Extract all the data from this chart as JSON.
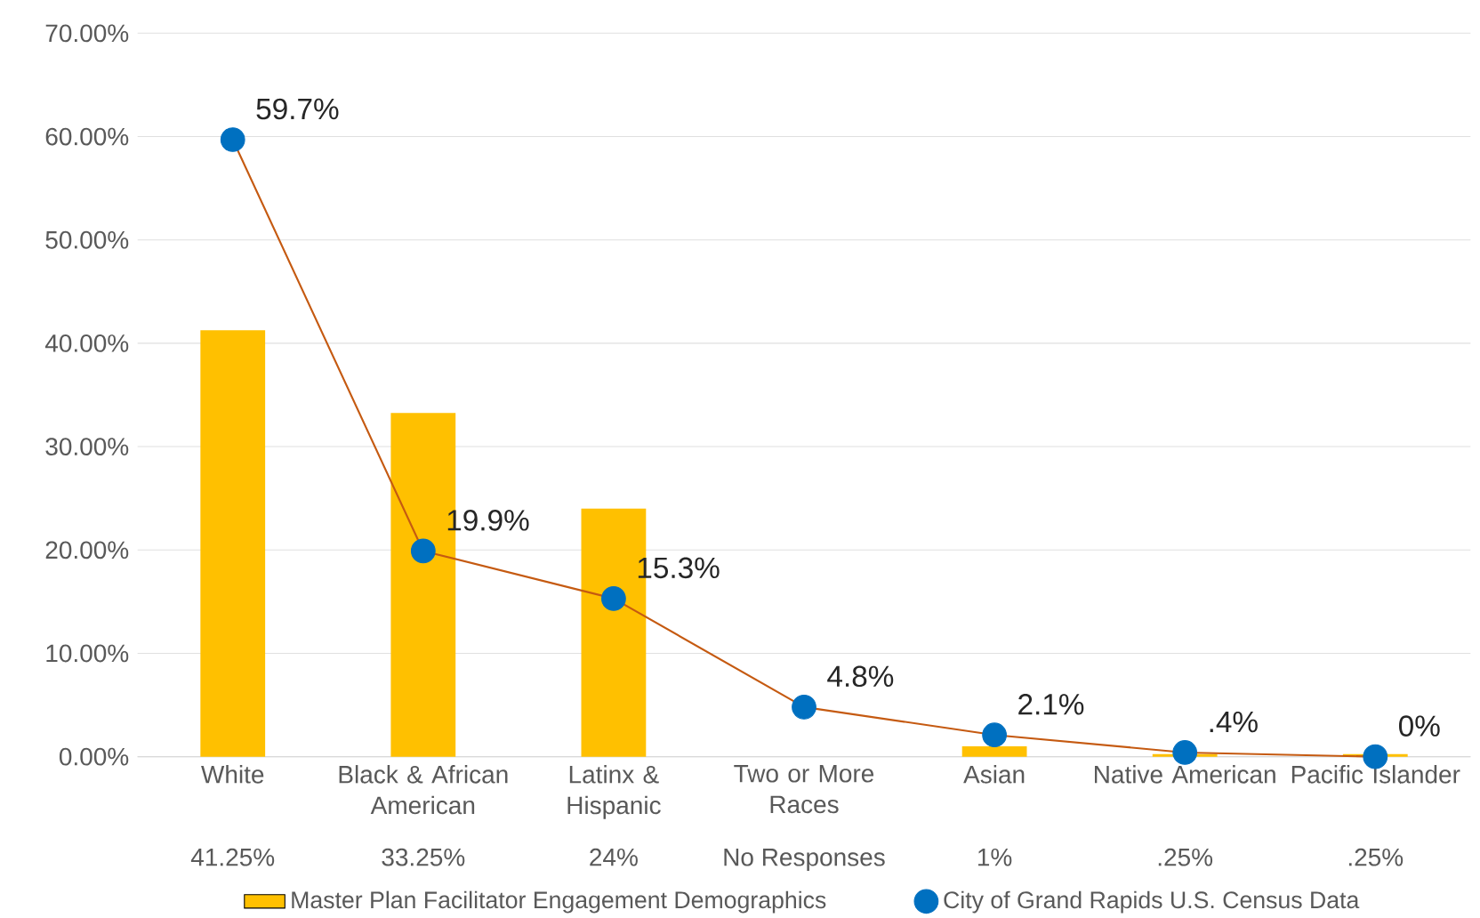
{
  "chart_data": {
    "type": "bar",
    "categories": [
      "White",
      "Black & African American",
      "Latinx & Hispanic",
      "Two or More Races",
      "Asian",
      "Native American",
      "Pacific Islander"
    ],
    "series": [
      {
        "name": "Master Plan Facilitator Engagement Demographics",
        "color": "#ffc000",
        "values": [
          41.25,
          33.25,
          24,
          null,
          1,
          0.25,
          0.25
        ],
        "value_labels": [
          "41.25%",
          "33.25%",
          "24%",
          "No Responses",
          "1%",
          ".25%",
          ".25%"
        ]
      },
      {
        "name": "City of Grand Rapids U.S. Census Data",
        "type": "line",
        "color": "#c55a11",
        "colors": [
          "#0070c0",
          "#0070c0",
          "#0070c0",
          "#0070c0",
          "#0070c0",
          "#0070c0",
          "#0070c0"
        ],
        "marker": "circle",
        "line_style": "solid",
        "values": [
          59.7,
          19.9,
          15.3,
          4.8,
          2.1,
          0.4,
          0
        ],
        "value_labels": [
          "59.7%",
          "19.9%",
          "15.3%",
          "4.8%",
          "2.1%",
          ".4%",
          "0%"
        ]
      }
    ],
    "ylim": [
      0,
      70
    ],
    "yticks": [
      {
        "value": 0,
        "label": "0.00%"
      },
      {
        "value": 10,
        "label": "10.00%"
      },
      {
        "value": 20,
        "label": "20.00%"
      },
      {
        "value": 30,
        "label": "30.00%"
      },
      {
        "value": 40,
        "label": "40.00%"
      },
      {
        "value": 50,
        "label": "50.00%"
      },
      {
        "value": 60,
        "label": "60.00%"
      },
      {
        "value": 70,
        "label": "70.00%"
      }
    ],
    "grid": "y",
    "legend": "bottom"
  }
}
